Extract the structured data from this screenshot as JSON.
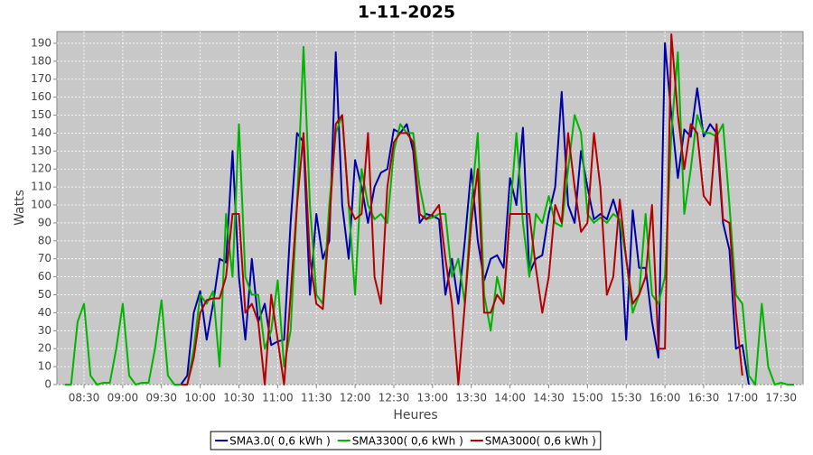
{
  "chart_data": {
    "type": "line",
    "title": "1-11-2025",
    "x_label": "Heures",
    "y_label": "Watts",
    "x": [
      "08:15",
      "08:20",
      "08:25",
      "08:30",
      "08:35",
      "08:40",
      "08:45",
      "08:50",
      "08:55",
      "09:00",
      "09:05",
      "09:10",
      "09:15",
      "09:20",
      "09:25",
      "09:30",
      "09:35",
      "09:40",
      "09:45",
      "09:50",
      "09:55",
      "10:00",
      "10:05",
      "10:10",
      "10:15",
      "10:20",
      "10:25",
      "10:30",
      "10:35",
      "10:40",
      "10:45",
      "10:50",
      "10:55",
      "11:00",
      "11:05",
      "11:10",
      "11:15",
      "11:20",
      "11:25",
      "11:30",
      "11:35",
      "11:40",
      "11:45",
      "11:50",
      "11:55",
      "12:00",
      "12:05",
      "12:10",
      "12:15",
      "12:20",
      "12:25",
      "12:30",
      "12:35",
      "12:40",
      "12:45",
      "12:50",
      "12:55",
      "13:00",
      "13:05",
      "13:10",
      "13:15",
      "13:20",
      "13:25",
      "13:30",
      "13:35",
      "13:40",
      "13:45",
      "13:50",
      "13:55",
      "14:00",
      "14:05",
      "14:10",
      "14:15",
      "14:20",
      "14:25",
      "14:30",
      "14:35",
      "14:40",
      "14:45",
      "14:50",
      "14:55",
      "15:00",
      "15:05",
      "15:10",
      "15:15",
      "15:20",
      "15:25",
      "15:30",
      "15:35",
      "15:40",
      "15:45",
      "15:50",
      "15:55",
      "16:00",
      "16:05",
      "16:10",
      "16:15",
      "16:20",
      "16:25",
      "16:30",
      "16:35",
      "16:40",
      "16:45",
      "16:50",
      "16:55",
      "17:00",
      "17:05",
      "17:10",
      "17:15",
      "17:20",
      "17:25",
      "17:30",
      "17:35",
      "17:40"
    ],
    "series": [
      {
        "name": "SMA3.0( 0,6 kWh )",
        "color": "#0000a8",
        "values": [
          null,
          null,
          null,
          null,
          null,
          null,
          null,
          null,
          null,
          null,
          null,
          null,
          null,
          null,
          null,
          null,
          null,
          null,
          0,
          5,
          40,
          52,
          25,
          45,
          70,
          68,
          130,
          60,
          25,
          70,
          35,
          45,
          22,
          24,
          25,
          90,
          140,
          135,
          50,
          95,
          70,
          80,
          185,
          100,
          70,
          125,
          110,
          90,
          110,
          118,
          120,
          142,
          140,
          145,
          130,
          90,
          95,
          94,
          92,
          50,
          70,
          45,
          80,
          120,
          80,
          58,
          70,
          72,
          65,
          115,
          100,
          143,
          62,
          70,
          72,
          95,
          110,
          163,
          100,
          90,
          130,
          110,
          92,
          95,
          92,
          103,
          90,
          25,
          97,
          65,
          65,
          35,
          15,
          190,
          150,
          115,
          142,
          138,
          165,
          138,
          145,
          140,
          90,
          75,
          20,
          22,
          0,
          null,
          null,
          null,
          null,
          null,
          null,
          null
        ]
      },
      {
        "name": "SMA3300( 0,6 kWh )",
        "color": "#00b400",
        "values": [
          0,
          0,
          35,
          45,
          5,
          0,
          1,
          1,
          20,
          45,
          5,
          0,
          1,
          1,
          20,
          47,
          5,
          0,
          0,
          0,
          20,
          50,
          45,
          52,
          10,
          95,
          60,
          145,
          60,
          50,
          50,
          20,
          30,
          58,
          10,
          30,
          100,
          188,
          100,
          50,
          45,
          100,
          140,
          150,
          100,
          50,
          120,
          100,
          92,
          95,
          90,
          130,
          145,
          140,
          140,
          110,
          92,
          93,
          95,
          95,
          60,
          70,
          45,
          100,
          140,
          50,
          30,
          60,
          45,
          95,
          140,
          90,
          60,
          95,
          90,
          105,
          90,
          88,
          120,
          150,
          140,
          95,
          90,
          93,
          90,
          95,
          92,
          70,
          40,
          50,
          95,
          50,
          45,
          60,
          140,
          185,
          95,
          120,
          150,
          140,
          140,
          138,
          145,
          100,
          50,
          45,
          5,
          0,
          45,
          10,
          0,
          1,
          0,
          0
        ]
      },
      {
        "name": "SMA3000( 0,6 kWh )",
        "color": "#b40000",
        "values": [
          null,
          null,
          null,
          null,
          null,
          null,
          null,
          null,
          null,
          null,
          null,
          null,
          null,
          null,
          null,
          null,
          null,
          null,
          0,
          0,
          15,
          40,
          47,
          48,
          48,
          60,
          95,
          95,
          40,
          45,
          35,
          0,
          50,
          25,
          0,
          50,
          100,
          140,
          70,
          45,
          42,
          90,
          145,
          150,
          100,
          92,
          95,
          140,
          60,
          45,
          110,
          135,
          140,
          140,
          135,
          95,
          92,
          95,
          100,
          70,
          45,
          0,
          45,
          90,
          120,
          40,
          40,
          50,
          45,
          95,
          95,
          95,
          95,
          65,
          40,
          60,
          100,
          90,
          140,
          110,
          85,
          90,
          140,
          110,
          50,
          60,
          103,
          70,
          45,
          50,
          60,
          100,
          20,
          20,
          195,
          150,
          120,
          145,
          140,
          105,
          100,
          145,
          92,
          90,
          40,
          5,
          null,
          null,
          null,
          null,
          null,
          null,
          null,
          null
        ]
      }
    ],
    "xlim": [
      "08:09",
      "17:47"
    ],
    "xticks": [
      "08:30",
      "09:00",
      "09:30",
      "10:00",
      "10:30",
      "11:00",
      "11:30",
      "12:00",
      "12:30",
      "13:00",
      "13:30",
      "14:00",
      "14:30",
      "15:00",
      "15:30",
      "16:00",
      "16:30",
      "17:00",
      "17:30"
    ],
    "ylim": [
      0,
      196.5
    ],
    "yticks": [
      0,
      10,
      20,
      30,
      40,
      50,
      60,
      70,
      80,
      90,
      100,
      110,
      120,
      130,
      140,
      150,
      160,
      170,
      180,
      190
    ],
    "grid": true,
    "legend": "bottom"
  }
}
